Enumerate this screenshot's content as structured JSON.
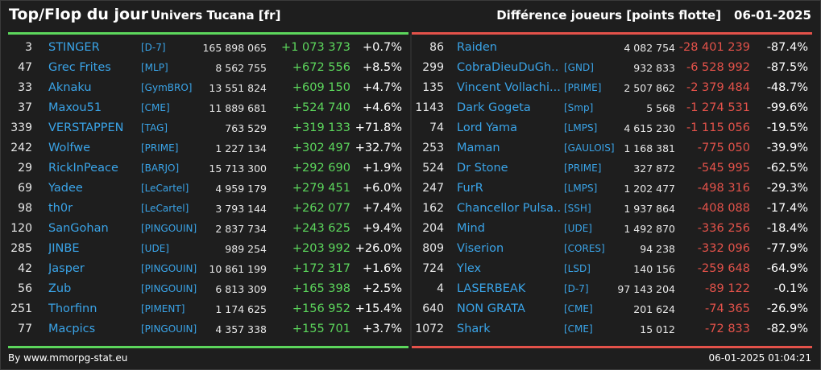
{
  "header": {
    "title": "Top/Flop du jour",
    "universe": "Univers Tucana [fr]",
    "subtitle": "Différence joueurs [points flotte]",
    "date": "06-01-2025"
  },
  "colors": {
    "background": "#1e1e1e",
    "positive": "#5cd65c",
    "negative": "#e4524a",
    "link": "#3aa4e8"
  },
  "top": [
    {
      "rank": "3",
      "name": "STINGER",
      "guild": "[D-7]",
      "score": "165 898 065",
      "diff": "+1 073 373",
      "pct": "+0.7%"
    },
    {
      "rank": "47",
      "name": "Grec Frites",
      "guild": "[MLP]",
      "score": "8 562 755",
      "diff": "+672 556",
      "pct": "+8.5%"
    },
    {
      "rank": "33",
      "name": "Aknaku",
      "guild": "[GymBRO]",
      "score": "13 551 824",
      "diff": "+609 150",
      "pct": "+4.7%"
    },
    {
      "rank": "37",
      "name": "Maxou51",
      "guild": "[CME]",
      "score": "11 889 681",
      "diff": "+524 740",
      "pct": "+4.6%"
    },
    {
      "rank": "339",
      "name": "VERSTAPPEN",
      "guild": "[TAG]",
      "score": "763 529",
      "diff": "+319 133",
      "pct": "+71.8%"
    },
    {
      "rank": "242",
      "name": "Wolfwe",
      "guild": "[PRIME]",
      "score": "1 227 134",
      "diff": "+302 497",
      "pct": "+32.7%"
    },
    {
      "rank": "29",
      "name": "RickInPeace",
      "guild": "[BARJO]",
      "score": "15 713 300",
      "diff": "+292 690",
      "pct": "+1.9%"
    },
    {
      "rank": "69",
      "name": "Yadee",
      "guild": "[LeCartel]",
      "score": "4 959 179",
      "diff": "+279 451",
      "pct": "+6.0%"
    },
    {
      "rank": "98",
      "name": "th0r",
      "guild": "[LeCartel]",
      "score": "3 793 144",
      "diff": "+262 077",
      "pct": "+7.4%"
    },
    {
      "rank": "120",
      "name": "SanGohan",
      "guild": "[PINGOUIN]",
      "score": "2 837 734",
      "diff": "+243 625",
      "pct": "+9.4%"
    },
    {
      "rank": "285",
      "name": "JINBE",
      "guild": "[UDE]",
      "score": "989 254",
      "diff": "+203 992",
      "pct": "+26.0%"
    },
    {
      "rank": "42",
      "name": "Jasper",
      "guild": "[PINGOUIN]",
      "score": "10 861 199",
      "diff": "+172 317",
      "pct": "+1.6%"
    },
    {
      "rank": "56",
      "name": "Zub",
      "guild": "[PINGOUIN]",
      "score": "6 813 309",
      "diff": "+165 398",
      "pct": "+2.5%"
    },
    {
      "rank": "251",
      "name": "Thorfinn",
      "guild": "[PIMENT]",
      "score": "1 174 625",
      "diff": "+156 952",
      "pct": "+15.4%"
    },
    {
      "rank": "77",
      "name": "Macpics",
      "guild": "[PINGOUIN]",
      "score": "4 357 338",
      "diff": "+155 701",
      "pct": "+3.7%"
    }
  ],
  "flop": [
    {
      "rank": "86",
      "name": "Raiden",
      "guild": "",
      "score": "4 082 754",
      "diff": "-28 401 239",
      "pct": "-87.4%"
    },
    {
      "rank": "299",
      "name": "CobraDieuDuGh...",
      "guild": "[GND]",
      "score": "932 833",
      "diff": "-6 528 992",
      "pct": "-87.5%"
    },
    {
      "rank": "135",
      "name": "Vincent Vollachi...",
      "guild": "[PRIME]",
      "score": "2 507 862",
      "diff": "-2 379 484",
      "pct": "-48.7%"
    },
    {
      "rank": "1143",
      "name": "Dark Gogeta",
      "guild": "[Smp]",
      "score": "5 568",
      "diff": "-1 274 531",
      "pct": "-99.6%"
    },
    {
      "rank": "74",
      "name": "Lord Yama",
      "guild": "[LMPS]",
      "score": "4 615 230",
      "diff": "-1 115 056",
      "pct": "-19.5%"
    },
    {
      "rank": "253",
      "name": "Maman",
      "guild": "[GAULOIS]",
      "score": "1 168 381",
      "diff": "-775 050",
      "pct": "-39.9%"
    },
    {
      "rank": "524",
      "name": "Dr Stone",
      "guild": "[PRIME]",
      "score": "327 872",
      "diff": "-545 995",
      "pct": "-62.5%"
    },
    {
      "rank": "247",
      "name": "FurR",
      "guild": "[LMPS]",
      "score": "1 202 477",
      "diff": "-498 316",
      "pct": "-29.3%"
    },
    {
      "rank": "162",
      "name": "Chancellor Pulsa...",
      "guild": "[SSH]",
      "score": "1 937 864",
      "diff": "-408 088",
      "pct": "-17.4%"
    },
    {
      "rank": "204",
      "name": "Mind",
      "guild": "[UDE]",
      "score": "1 492 870",
      "diff": "-336 256",
      "pct": "-18.4%"
    },
    {
      "rank": "809",
      "name": "Viserion",
      "guild": "[CORES]",
      "score": "94 238",
      "diff": "-332 096",
      "pct": "-77.9%"
    },
    {
      "rank": "724",
      "name": "Ylex",
      "guild": "[LSD]",
      "score": "140 156",
      "diff": "-259 648",
      "pct": "-64.9%"
    },
    {
      "rank": "4",
      "name": "LASERBEAK",
      "guild": "[D-7]",
      "score": "97 143 204",
      "diff": "-89 122",
      "pct": "-0.1%"
    },
    {
      "rank": "640",
      "name": "NON GRATA",
      "guild": "[CME]",
      "score": "201 624",
      "diff": "-74 365",
      "pct": "-26.9%"
    },
    {
      "rank": "1072",
      "name": "Shark",
      "guild": "[CME]",
      "score": "15 012",
      "diff": "-72 833",
      "pct": "-82.9%"
    }
  ],
  "footer": {
    "credit": "By www.mmorpg-stat.eu",
    "timestamp": "06-01-2025 01:04:21"
  }
}
